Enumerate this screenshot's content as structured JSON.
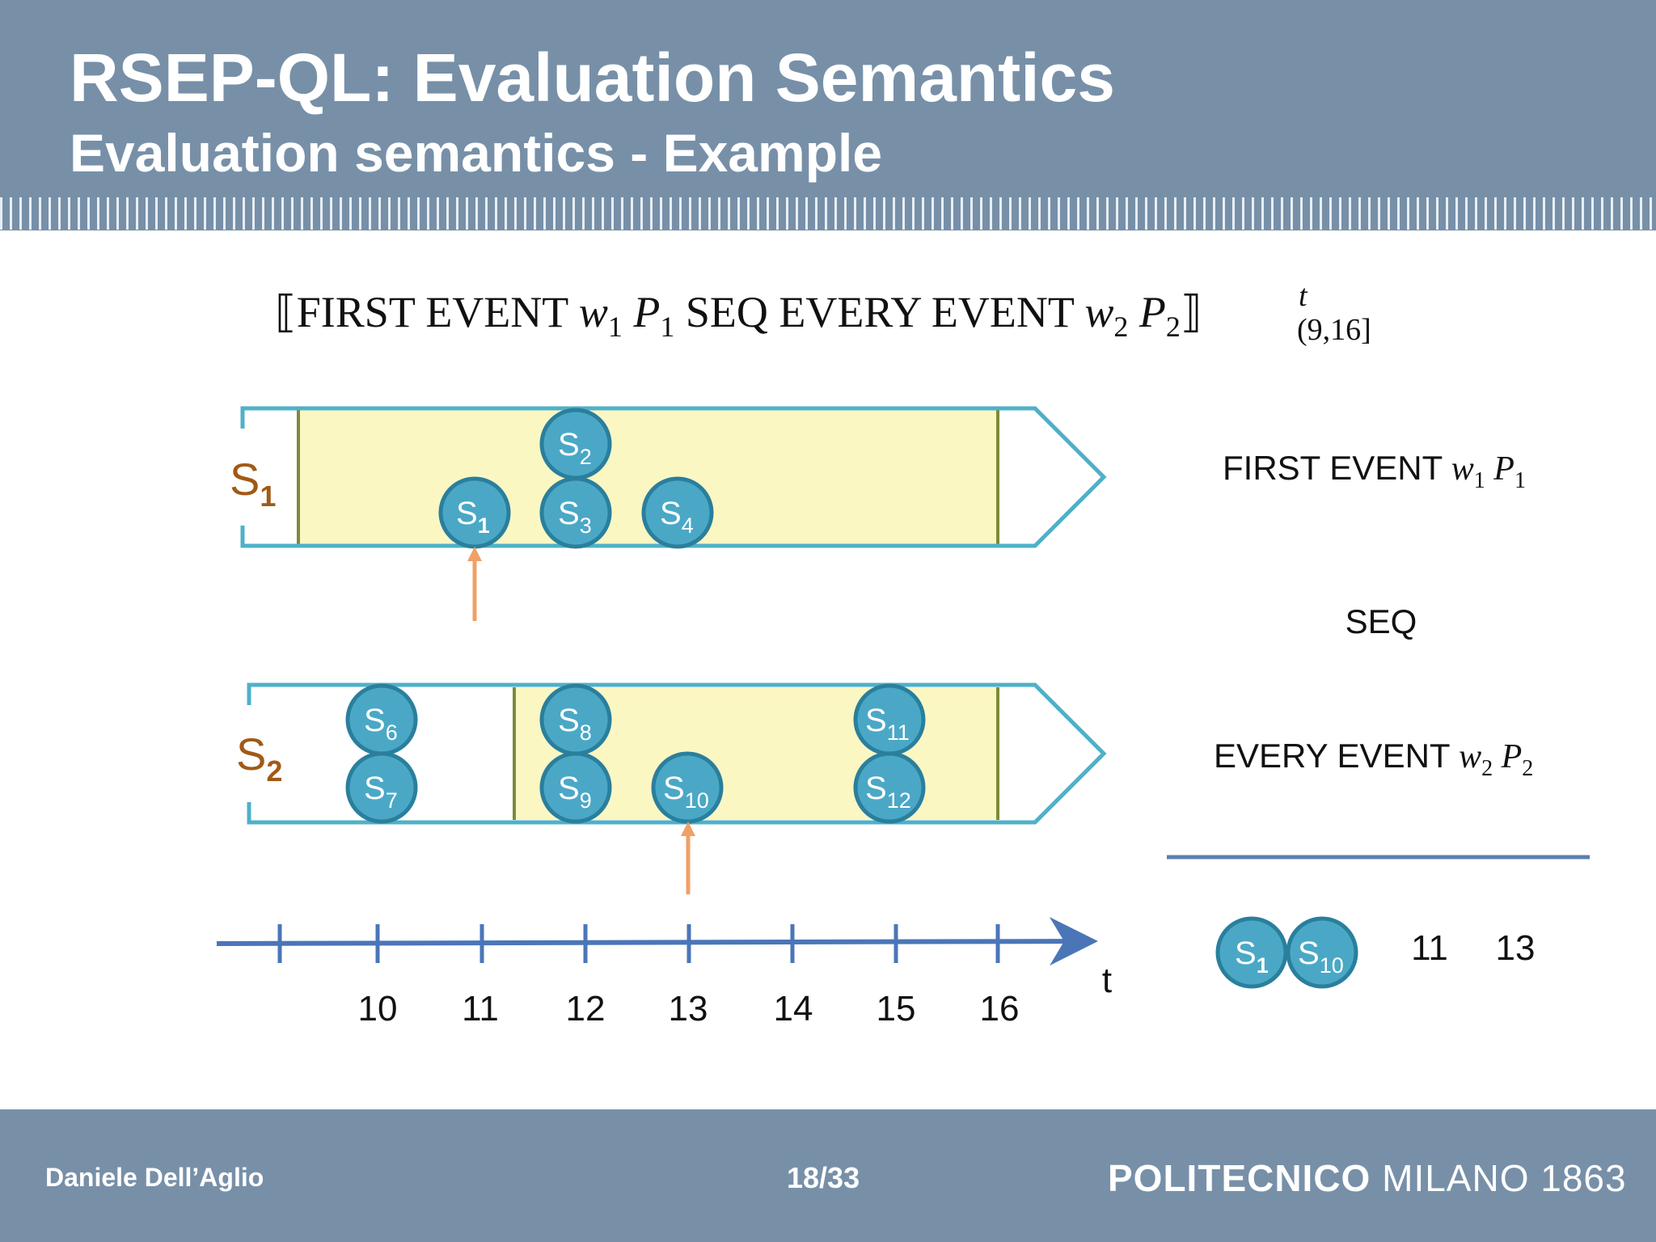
{
  "header": {
    "title": "RSEP-QL: Evaluation Semantics",
    "subtitle": "Evaluation semantics - Example"
  },
  "formula": {
    "open": "⟦",
    "first_event": "FIRST EVENT",
    "w1": "w",
    "w1_sub": "1",
    "p1": "P",
    "p1_sub": "1",
    "seq": "SEQ",
    "every_event": "EVERY EVENT",
    "w2": "w",
    "w2_sub": "2",
    "p2": "P",
    "p2_sub": "2",
    "close": "⟧",
    "sup": "t",
    "interval": "(9,16]"
  },
  "streams": [
    {
      "label": "S",
      "label_sub": "1"
    },
    {
      "label": "S",
      "label_sub": "2"
    }
  ],
  "events": [
    {
      "name": "S",
      "sub": "1"
    },
    {
      "name": "S",
      "sub": "2"
    },
    {
      "name": "S",
      "sub": "3"
    },
    {
      "name": "S",
      "sub": "4"
    },
    {
      "name": "S",
      "sub": "6"
    },
    {
      "name": "S",
      "sub": "7"
    },
    {
      "name": "S",
      "sub": "8"
    },
    {
      "name": "S",
      "sub": "9"
    },
    {
      "name": "S",
      "sub": "10"
    },
    {
      "name": "S",
      "sub": "11"
    },
    {
      "name": "S",
      "sub": "12"
    }
  ],
  "axis": {
    "ticks": [
      "10",
      "11",
      "12",
      "13",
      "14",
      "15",
      "16"
    ],
    "label": "t"
  },
  "right_panel": {
    "first_event": "FIRST EVENT",
    "w1": "w",
    "w1_sub": "1",
    "p1": "P",
    "p1_sub": "1",
    "seq": "SEQ",
    "every_event": "EVERY EVENT",
    "w2": "w",
    "w2_sub": "2",
    "p2": "P",
    "p2_sub": "2"
  },
  "result": {
    "events": [
      {
        "name": "S",
        "sub": "1"
      },
      {
        "name": "S",
        "sub": "10"
      }
    ],
    "times": [
      "11",
      "13"
    ]
  },
  "footer": {
    "author": "Daniele Dell’Aglio",
    "page": "18/33",
    "logo_bold": "POLITECNICO",
    "logo_rest": " MILANO 1863"
  },
  "colors": {
    "header_bg": "#7790a8",
    "window_fill": "#fbf7c3",
    "window_border": "#7a8c3a",
    "stream_outline": "#4fb0c8",
    "event_fill": "#4aa8c6",
    "event_stroke": "#2a7f9d",
    "stream_label": "#a05a16",
    "arrow_orange": "#f0a066",
    "axis_blue": "#4a76b8"
  }
}
